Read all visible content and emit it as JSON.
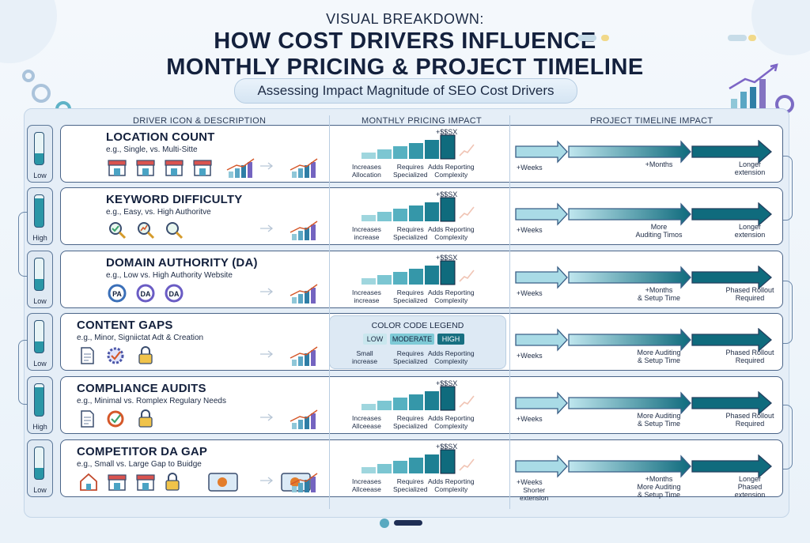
{
  "header": {
    "kicker": "VISUAL BREAKDOWN:",
    "title_line1": "HOW COST DRIVERS INFLUENCE",
    "title_line2": "MONTHLY PRICING & PROJECT TIMELINE",
    "subtitle": "Assessing Impact Magnitude of SEO Cost Drivers"
  },
  "columns": {
    "driver": "DRIVER ICON & DESCRIPTION",
    "pricing": "MONTHLY PRICING IMPACT",
    "timeline": "PROJECT TIMELINE IMPACT"
  },
  "colors": {
    "teal_dark": "#0f6b7d",
    "teal_mid": "#2a96a6",
    "teal_light": "#8fd3df",
    "navy": "#14213d"
  },
  "legend": {
    "title": "COLOR CODE LEGEND",
    "low": "LOW",
    "moderate": "MODERATE",
    "high": "HIGH"
  },
  "rows": [
    {
      "title": "LOCATION COUNT",
      "subtitle": "e.g., Single, vs. Multi-Sitte",
      "level": "Low",
      "icons": [
        "storefront-icon",
        "storefront-icon",
        "storefront-icon",
        "storefront-icon"
      ],
      "price_tag": "+$$SX",
      "p1": "Increases",
      "p1b": "Allocation",
      "p2": "Requires",
      "p2b": "Specialized",
      "p3": "Adds Reporting",
      "p3b": "Complexity",
      "t_left": "+Weeks",
      "t_mid": "+Months",
      "t_mid2": "",
      "t_right": "Longer",
      "t_right2": "extension",
      "t_right3": ""
    },
    {
      "title": "KEYWORD DIFFICULTY",
      "subtitle": "e.g., Easy, vs. High Authoritve",
      "level": "High",
      "icons": [
        "magnifier-check-icon",
        "magnifier-chart-icon",
        "magnifier-icon"
      ],
      "price_tag": "+$$SX",
      "p1": "Increases",
      "p1b": "increase",
      "p2": "Requires",
      "p2b": "Specialized",
      "p3": "Adds Reporting",
      "p3b": "Complexity",
      "t_left": "+Weeks",
      "t_mid": "More",
      "t_mid2": "Auditing Timos",
      "t_right": "Longer",
      "t_right2": "extension",
      "t_right3": ""
    },
    {
      "title": "DOMAIN AUTHORITY (DA)",
      "subtitle": "e.g., Low vs. High Authority Website",
      "level": "Low",
      "icons": [
        "PA",
        "DA",
        "DA"
      ],
      "price_tag": "+$$SX",
      "p1": "Increases",
      "p1b": "increase",
      "p2": "Requires",
      "p2b": "Specialized",
      "p3": "Adds Reporting",
      "p3b": "Complexity",
      "t_left": "+Weeks",
      "t_mid": "+Months",
      "t_mid2": "& Setup Time",
      "t_right": "Phased Rollout",
      "t_right2": "Required",
      "t_right3": ""
    },
    {
      "title": "CONTENT GAPS",
      "subtitle": "e.g., Minor, Signiictat Adt & Creation",
      "level": "Low",
      "icons": [
        "document-icon",
        "gear-check-icon",
        "padlock-icon"
      ],
      "price_tag": "",
      "p1": "Small",
      "p1b": "increase",
      "p2": "Requires",
      "p2b": "Specialized",
      "p3": "Adds Reporting",
      "p3b": "Complexity",
      "t_left": "+Weeks",
      "t_mid": "More Auditing",
      "t_mid2": "& Setup Time",
      "t_right": "Phased Rollout",
      "t_right2": "Required",
      "t_right3": ""
    },
    {
      "title": "COMPLIANCE AUDITS",
      "subtitle": "e.g., Minimal vs. Romplex Regulary Needs",
      "level": "High",
      "icons": [
        "document-icon",
        "badge-check-icon",
        "padlock-icon"
      ],
      "price_tag": "+$$SX",
      "p1": "Increases",
      "p1b": "Allceease",
      "p2": "Requires",
      "p2b": "Specialized",
      "p3": "Adds Reporting",
      "p3b": "Complexity",
      "t_left": "+Weeks",
      "t_mid": "More Auditing",
      "t_mid2": "& Setup Time",
      "t_right": "Phased Rollout",
      "t_right2": "Required",
      "t_right3": ""
    },
    {
      "title": "COMPETITOR DA GAP",
      "subtitle": "e.g., Small vs. Large Gap to Buidge",
      "level": "Low",
      "icons": [
        "house-icon",
        "storefront-icon",
        "storefront-icon",
        "padlock-icon"
      ],
      "price_tag": "+$$SX",
      "p1": "Increases",
      "p1b": "Allceease",
      "p2": "Requires",
      "p2b": "Specialized",
      "p3": "Adds Reporting",
      "p3b": "Complexity",
      "t_left": "+Weeks",
      "t_left2": "Shorter",
      "t_left3": "extension",
      "t_mid": "+Months",
      "t_mid2": "More Auditing",
      "t_mid3": "& Setup Time",
      "t_right": "Longer",
      "t_right2": "Phased",
      "t_right3": "extension"
    }
  ]
}
